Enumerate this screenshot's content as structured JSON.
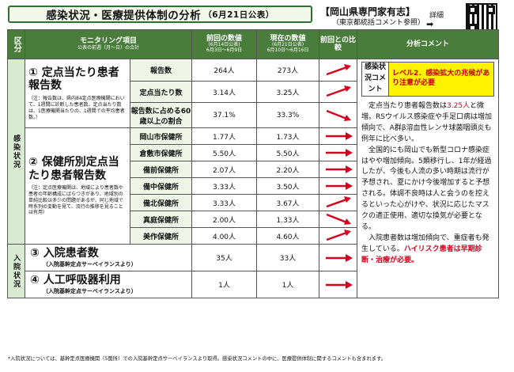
{
  "title": "感染状況・医療提供体制の分析",
  "title_date": "（6月21日公表）",
  "org": "【岡山県専門家有志】",
  "org_sub": "（東京都統括コメント参照）",
  "detail_label": "詳細",
  "header": {
    "cat": "区分",
    "item": "モニタリング項目",
    "item_sub": "公表の前週（月～日）の合計",
    "prev": "前回の数値",
    "prev_sub1": "(6月14日公表)",
    "prev_sub2": "6月3日～6月9日",
    "curr": "現在の数値",
    "curr_sub1": "(6月21日公表)",
    "curr_sub2": "6月10日～6月16日",
    "cmp": "前回との比較",
    "comment": "分析コメント"
  },
  "category1": "感染状況",
  "category2": "入院状況",
  "sec1": {
    "title": "① 定点当たり患者報告数",
    "note": "（注：報告数は、県内84定点医療機関において、1週間に診断した患者数。定点当たり数は、1医療機関当たりの、1週間での平均患者数。）",
    "rows": [
      {
        "label": "報告数",
        "prev": "264人",
        "curr": "273人",
        "dir": "up"
      },
      {
        "label": "定点当たり数",
        "prev": "3.14人",
        "curr": "3.25人",
        "dir": "up"
      },
      {
        "label": "報告数に占める60歳以上の割合",
        "prev": "37.1%",
        "curr": "33.3%",
        "dir": "down"
      }
    ]
  },
  "sec2": {
    "title": "② 保健所別定点当たり患者報告数",
    "note": "（注：定点医療機関は、地域により患者数や患者の年齢構成にばらつきがあり、地域別の単純比較は多少の問題があるが、同じ地域で時系列の変動を見て、流行の推移を見ることは有用）",
    "rows": [
      {
        "label": "岡山市保健所",
        "prev": "1.77人",
        "curr": "1.73人",
        "dir": "flat"
      },
      {
        "label": "倉敷市保健所",
        "prev": "5.50人",
        "curr": "5.50人",
        "dir": "flat"
      },
      {
        "label": "備前保健所",
        "prev": "2.07人",
        "curr": "2.20人",
        "dir": "flat"
      },
      {
        "label": "備中保健所",
        "prev": "3.33人",
        "curr": "3.50人",
        "dir": "flat"
      },
      {
        "label": "備北保健所",
        "prev": "3.33人",
        "curr": "3.67人",
        "dir": "up"
      },
      {
        "label": "真庭保健所",
        "prev": "2.00人",
        "curr": "1.33人",
        "dir": "down"
      },
      {
        "label": "美作保健所",
        "prev": "4.00人",
        "curr": "4.60人",
        "dir": "up"
      }
    ]
  },
  "sec3": {
    "title": "③ 入院患者数",
    "sub": "（入院基幹定点サーベイランスより）",
    "prev": "35人",
    "curr": "33人",
    "dir": "flat"
  },
  "sec4": {
    "title": "④ 人工呼吸器利用",
    "sub": "（入院基幹定点サーベイランスより）",
    "prev": "1人",
    "curr": "1人",
    "dir": "flat"
  },
  "level_tag": "感染状況コメント",
  "level_text": "レベル2．感染拡大の兆候があり注意が必要",
  "comment": {
    "p1_a": "定点当たり患者報告数は",
    "p1_red": "3.25人",
    "p1_b": "と微増。RSウイルス感染症や手足口病は増加傾向で、A群β溶血性レンサ球菌咽頭炎も例年に比べ多い。",
    "p2": "全国的にも岡山でも新型コロナ感染症はやや増加傾向。5類移行し、1年が経過したが、今後も人流の多い時期は流行が予想され、夏にかけ今後増加すると予想される。体調不良時は人と会うのを控えるといった心がけや、状況に応じたマスクの適正使用、適切な換気が必要となる。",
    "p3_a": "入院患者数は増加傾向で、重症者も発生している。",
    "p3_red": "ハイリスク患者は早期診断・治療が必要。"
  },
  "footer": "*入院状況については、基幹定点医療機関（5箇所）での入院基幹定点サーベイランスより取得。感染状況コメントの中に、医療提供体制に関するコメントも含まれます。",
  "colors": {
    "header_bg": "#4a7d3c",
    "arrow": "#d6001c",
    "level_bg": "#fff200"
  }
}
